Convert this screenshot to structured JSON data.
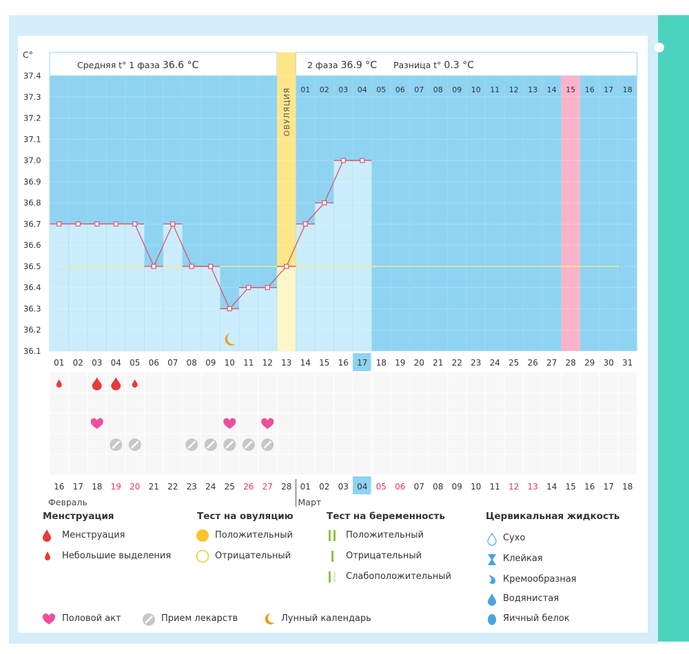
{
  "header": {
    "unit": "C°",
    "phase1_label": "Средняя t° 1 фаза",
    "phase1_value": "36.6 °C",
    "phase2_label": "2 фаза",
    "phase2_value": "36.9 °C",
    "diff_label": "Разница t°",
    "diff_value": "0.3 °C",
    "ovulation_label": "ОВУЛЯЦИЯ"
  },
  "chart_data": {
    "type": "line",
    "y_ticks": [
      "37.4",
      "37.3",
      "37.2",
      "37.1",
      "37.0",
      "36.9",
      "36.8",
      "36.7",
      "36.6",
      "36.5",
      "36.4",
      "36.3",
      "36.2",
      "36.1"
    ],
    "ylim": [
      36.1,
      37.4
    ],
    "cycle_days": [
      "01",
      "02",
      "03",
      "04",
      "05",
      "06",
      "07",
      "08",
      "09",
      "10",
      "11",
      "12",
      "13",
      "14",
      "15",
      "16",
      "17",
      "18",
      "19",
      "20",
      "21",
      "22",
      "23",
      "24",
      "25",
      "26",
      "27",
      "28",
      "29",
      "30",
      "31"
    ],
    "temperatures": [
      36.7,
      36.7,
      36.7,
      36.7,
      36.7,
      36.5,
      36.7,
      36.5,
      36.5,
      36.3,
      36.4,
      36.4,
      36.5,
      36.7,
      36.8,
      37.0,
      37.0
    ],
    "coverline": 36.5,
    "ovulation_day": 13,
    "highlight_day": 17,
    "luteal_days": [
      "01",
      "02",
      "03",
      "04",
      "05",
      "06",
      "07",
      "08",
      "09",
      "10",
      "11",
      "12",
      "13",
      "14",
      "15",
      "16",
      "17",
      "18"
    ],
    "expected_period_day": 28,
    "calendar_days": [
      "16",
      "17",
      "18",
      "19",
      "20",
      "21",
      "22",
      "23",
      "24",
      "25",
      "26",
      "27",
      "28",
      "01",
      "02",
      "03",
      "04",
      "05",
      "06",
      "07",
      "08",
      "09",
      "10",
      "11",
      "12",
      "13",
      "14",
      "15",
      "16",
      "17",
      "18"
    ],
    "weekend_indices": [
      3,
      4,
      10,
      11,
      17,
      18,
      24,
      25
    ],
    "month_labels": [
      "Февраль",
      "Март"
    ],
    "menstruation": [
      {
        "day": 1,
        "type": "small"
      },
      {
        "day": 3,
        "type": "full"
      },
      {
        "day": 4,
        "type": "full"
      },
      {
        "day": 5,
        "type": "small"
      }
    ],
    "intercourse_days": [
      3,
      10,
      12
    ],
    "medication_days": [
      4,
      5,
      8,
      9,
      10,
      11,
      12
    ],
    "moon_day": 10
  },
  "legend": {
    "menstruation": {
      "title": "Менструация",
      "items": [
        "Менструация",
        "Небольшие выделения"
      ]
    },
    "ovulation_test": {
      "title": "Тест на овуляцию",
      "items": [
        "Положительный",
        "Отрицательный"
      ]
    },
    "pregnancy_test": {
      "title": "Тест на беременность",
      "items": [
        "Положительный",
        "Отрицательный",
        "Слабоположительный"
      ]
    },
    "cervical": {
      "title": "Цервикальная жидкость",
      "items": [
        "Сухо",
        "Клейкая",
        "Кремообразная",
        "Водянистая",
        "Яичный белок"
      ]
    },
    "bottom": [
      "Половой акт",
      "Прием лекарств",
      "Лунный календарь"
    ]
  },
  "colors": {
    "grid_bg": "#8fd3f2",
    "bar": "#cbedfb",
    "line": "#e0506a",
    "coverline": "#f4ee7a",
    "ovulation": "#fde68a",
    "ovulation_dot": "#f7c52a",
    "expected": "#f9b4c9",
    "highlight": "#8fd3f2",
    "weekend": "#e8345c"
  }
}
